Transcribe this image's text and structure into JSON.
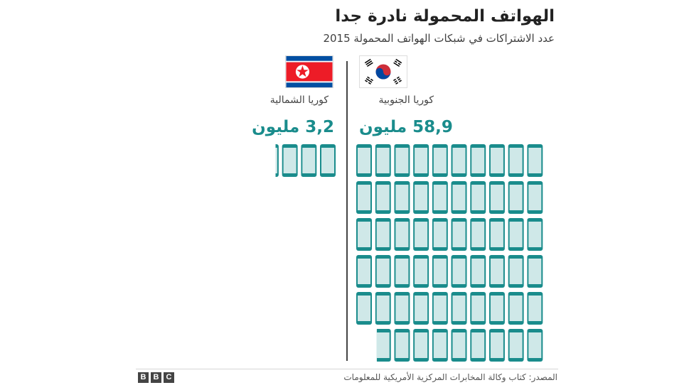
{
  "chart_data": {
    "type": "pictogram",
    "title": "الهواتف المحمولة نادرة جدا",
    "subtitle": "عدد الاشتراكات في شبكات الهواتف المحمولة 2015",
    "unit_per_icon": 1,
    "series": [
      {
        "name": "كوريا الجنوبية",
        "value": 58.9,
        "value_label": "58,9 مليون",
        "flag": "south-korea-flag"
      },
      {
        "name": "كوريا الشمالية",
        "value": 3.2,
        "value_label": "3,2 مليون",
        "flag": "north-korea-flag"
      }
    ]
  },
  "footer": {
    "source": "المصدر: كتاب وكالة المخابرات المركزية الأمريكية للمعلومات",
    "logo": [
      "B",
      "B",
      "C"
    ]
  },
  "colors": {
    "accent": "#1a8c8c",
    "phone_fill": "#cfe8e8",
    "phone_border": "#1a8c8c"
  }
}
